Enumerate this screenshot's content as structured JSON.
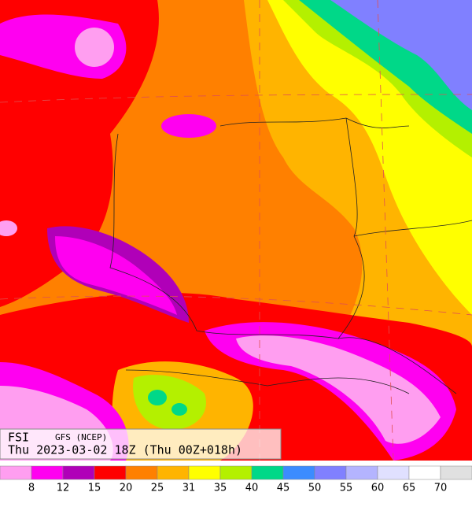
{
  "map": {
    "title": "FSI",
    "model": "GFS (NCEP)",
    "valid": "Thu 2023-03-02 18Z (Thu 00Z+018h)"
  },
  "legend": {
    "colors": [
      "#ff9ef0",
      "#ff00f0",
      "#b000b8",
      "#ff0000",
      "#ff8000",
      "#ffb400",
      "#ffff00",
      "#b4f000",
      "#00d888",
      "#3c8cff",
      "#8080ff",
      "#b4b4ff",
      "#e0e0ff",
      "#ffffff",
      "#e0e0e0"
    ],
    "ticks": [
      8,
      12,
      15,
      20,
      25,
      31,
      35,
      40,
      45,
      50,
      55,
      60,
      65,
      70
    ]
  }
}
